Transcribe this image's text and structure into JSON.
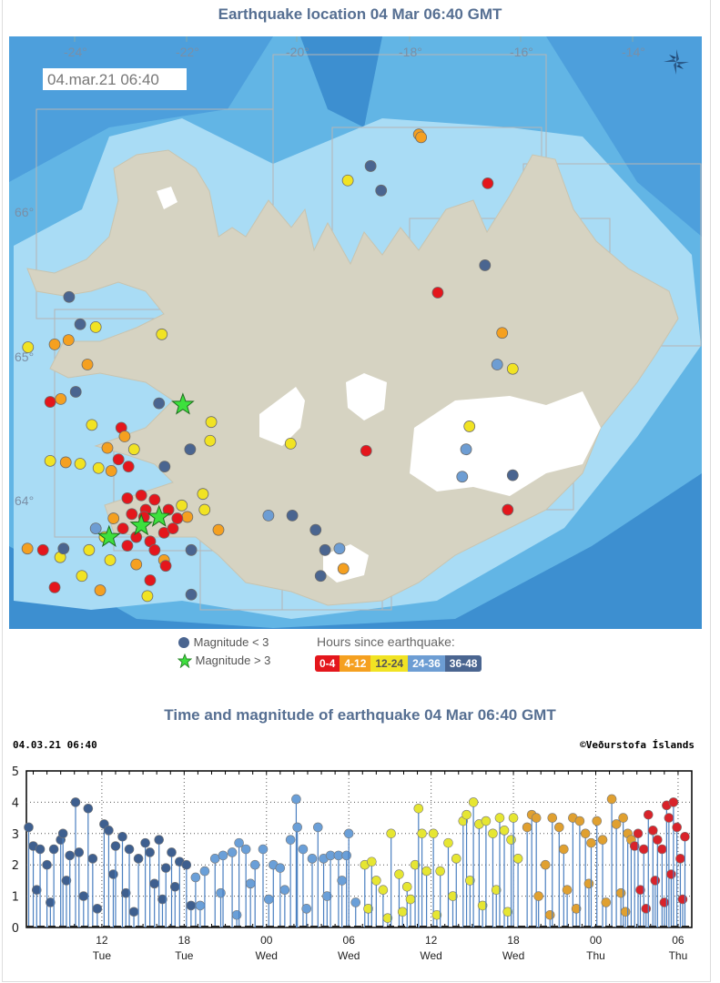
{
  "map_section": {
    "title": "Earthquake location   04 Mar 06:40 GMT",
    "timestamp": "04.mar.21  06:40",
    "lon_labels": [
      "-24°",
      "-22°",
      "-20°",
      "-18°",
      "-16°",
      "-14°"
    ],
    "lat_labels": [
      "66°",
      "65°",
      "64°"
    ],
    "compass_icon": "compass-rose-icon",
    "colors": {
      "ocean": "#62b5e5",
      "shelf": "#a9dcf5",
      "deep": "#3d8fd0",
      "land": "#d6d3c2",
      "glacier": "#ffffff"
    },
    "earthquakes": [
      [
        -16.56,
        66.2,
        "0-4"
      ],
      [
        -17.8,
        66.54,
        "4-12"
      ],
      [
        -17.76,
        66.52,
        "4-12"
      ],
      [
        -19.08,
        66.22,
        "12-24"
      ],
      [
        -18.67,
        66.32,
        "36-48"
      ],
      [
        -18.48,
        66.15,
        "36-48"
      ],
      [
        -16.61,
        65.63,
        "36-48"
      ],
      [
        -17.46,
        65.44,
        "0-4"
      ],
      [
        -16.3,
        65.16,
        "4-12"
      ],
      [
        -16.11,
        64.91,
        "12-24"
      ],
      [
        -16.39,
        64.94,
        "24-36"
      ],
      [
        -16.89,
        64.51,
        "12-24"
      ],
      [
        -16.95,
        64.35,
        "24-36"
      ],
      [
        -17.02,
        64.16,
        "24-36"
      ],
      [
        -16.11,
        64.17,
        "36-48"
      ],
      [
        -16.2,
        63.93,
        "0-4"
      ],
      [
        -18.75,
        64.34,
        "0-4"
      ],
      [
        -20.11,
        64.39,
        "12-24"
      ],
      [
        -20.51,
        63.89,
        "24-36"
      ],
      [
        -20.08,
        63.89,
        "36-48"
      ],
      [
        -19.66,
        63.79,
        "36-48"
      ],
      [
        -19.49,
        63.65,
        "36-48"
      ],
      [
        -19.23,
        63.66,
        "24-36"
      ],
      [
        -19.16,
        63.52,
        "4-12"
      ],
      [
        -19.57,
        63.47,
        "36-48"
      ],
      [
        -24.36,
        65.08,
        "4-12"
      ],
      [
        -24.11,
        65.11,
        "4-12"
      ],
      [
        -24.84,
        65.06,
        "12-24"
      ],
      [
        -23.62,
        65.2,
        "12-24"
      ],
      [
        -23.9,
        65.22,
        "36-48"
      ],
      [
        -24.1,
        65.41,
        "36-48"
      ],
      [
        -23.77,
        64.94,
        "4-12"
      ],
      [
        -22.43,
        65.15,
        "12-24"
      ],
      [
        -24.44,
        64.68,
        "0-4"
      ],
      [
        -24.25,
        64.7,
        "4-12"
      ],
      [
        -23.98,
        64.75,
        "36-48"
      ],
      [
        -22.48,
        64.67,
        "36-48"
      ],
      [
        -21.54,
        64.54,
        "12-24"
      ],
      [
        -21.56,
        64.41,
        "12-24"
      ],
      [
        -21.92,
        64.35,
        "36-48"
      ],
      [
        -23.69,
        64.52,
        "12-24"
      ],
      [
        -23.16,
        64.5,
        "0-4"
      ],
      [
        -23.1,
        64.44,
        "4-12"
      ],
      [
        -23.41,
        64.36,
        "4-12"
      ],
      [
        -22.93,
        64.35,
        "12-24"
      ],
      [
        -23.21,
        64.28,
        "0-4"
      ],
      [
        -23.03,
        64.23,
        "0-4"
      ],
      [
        -24.44,
        64.27,
        "12-24"
      ],
      [
        -24.16,
        64.26,
        "4-12"
      ],
      [
        -23.9,
        64.25,
        "12-24"
      ],
      [
        -23.57,
        64.22,
        "12-24"
      ],
      [
        -23.34,
        64.2,
        "4-12"
      ],
      [
        -22.38,
        64.23,
        "36-48"
      ],
      [
        -21.69,
        64.04,
        "12-24"
      ],
      [
        -21.66,
        63.93,
        "12-24"
      ],
      [
        -21.41,
        63.79,
        "4-12"
      ],
      [
        -21.97,
        63.88,
        "4-12"
      ],
      [
        -21.9,
        63.65,
        "36-48"
      ],
      [
        -22.39,
        63.58,
        "4-12"
      ],
      [
        -22.89,
        63.55,
        "4-12"
      ],
      [
        -23.36,
        63.58,
        "12-24"
      ],
      [
        -23.87,
        63.47,
        "12-24"
      ],
      [
        -24.36,
        63.39,
        "0-4"
      ],
      [
        -23.54,
        63.37,
        "4-12"
      ],
      [
        -22.64,
        63.44,
        "0-4"
      ],
      [
        -22.36,
        63.54,
        "0-4"
      ],
      [
        -22.69,
        63.33,
        "12-24"
      ],
      [
        -21.9,
        63.34,
        "36-48"
      ],
      [
        -24.85,
        63.66,
        "4-12"
      ],
      [
        -24.57,
        63.65,
        "0-4"
      ],
      [
        -24.26,
        63.6,
        "12-24"
      ],
      [
        -24.2,
        63.66,
        "36-48"
      ],
      [
        -23.74,
        63.65,
        "12-24"
      ],
      [
        -23.62,
        63.8,
        "24-36"
      ],
      [
        -23.3,
        63.87,
        "4-12"
      ],
      [
        -22.07,
        63.96,
        "12-24"
      ],
      [
        -23.46,
        63.74,
        "12-24"
      ],
      [
        -23.05,
        64.01,
        "0-4"
      ],
      [
        -22.8,
        64.03,
        "0-4"
      ],
      [
        -22.56,
        64.0,
        "0-4"
      ],
      [
        -22.97,
        63.9,
        "0-4"
      ],
      [
        -22.72,
        63.93,
        "0-4"
      ],
      [
        -22.31,
        63.93,
        "0-4"
      ],
      [
        -22.15,
        63.87,
        "0-4"
      ],
      [
        -23.13,
        63.8,
        "0-4"
      ],
      [
        -22.89,
        63.74,
        "0-4"
      ],
      [
        -22.64,
        63.71,
        "0-4"
      ],
      [
        -22.39,
        63.77,
        "0-4"
      ],
      [
        -22.23,
        63.8,
        "0-4"
      ],
      [
        -23.05,
        63.68,
        "0-4"
      ],
      [
        -22.56,
        63.65,
        "0-4"
      ],
      [
        -22.75,
        63.88,
        "0-4"
      ]
    ],
    "large_earthquakes": [
      [
        -22.05,
        64.66
      ],
      [
        -23.38,
        63.74
      ],
      [
        -22.8,
        63.82
      ],
      [
        -22.48,
        63.88
      ]
    ],
    "legend": {
      "small_label": "Magnitude < 3",
      "large_label": "Magnitude > 3",
      "hours_title": "Hours since earthquake:",
      "bands": [
        {
          "label": "0-4",
          "color": "#e4161c"
        },
        {
          "label": "4-12",
          "color": "#f5a020"
        },
        {
          "label": "12-24",
          "color": "#f1e323"
        },
        {
          "label": "24-36",
          "color": "#6d9dd3"
        },
        {
          "label": "36-48",
          "color": "#4a6590"
        }
      ],
      "band_text_colors": [
        "#ffffff",
        "#ffffff",
        "#555555",
        "#ffffff",
        "#ffffff"
      ]
    }
  },
  "chart_section": {
    "title": "Time and magnitude of earthquake   04 Mar 06:40 GMT",
    "timestamp": "04.03.21 06:40",
    "credit": "©Veðurstofa Íslands"
  },
  "chart_data": {
    "type": "scatter",
    "title": "",
    "xlabel": "",
    "ylabel": "",
    "xlim": [
      "Tue 06:30",
      "Thu 07:00"
    ],
    "ylim": [
      0,
      5
    ],
    "yticks": [
      "0",
      "1",
      "2",
      "3",
      "4",
      "5"
    ],
    "xticks": [
      {
        "at": "Tue 12:00",
        "hour": "12",
        "day": "Tue"
      },
      {
        "at": "Tue 18:00",
        "hour": "18",
        "day": "Tue"
      },
      {
        "at": "Wed 00:00",
        "hour": "00",
        "day": "Wed"
      },
      {
        "at": "Wed 06:00",
        "hour": "06",
        "day": "Wed"
      },
      {
        "at": "Wed 12:00",
        "hour": "12",
        "day": "Wed"
      },
      {
        "at": "Wed 18:00",
        "hour": "18",
        "day": "Wed"
      },
      {
        "at": "Thu 00:00",
        "hour": "00",
        "day": "Thu"
      },
      {
        "at": "Thu 06:00",
        "hour": "06",
        "day": "Thu"
      }
    ],
    "grid": true,
    "series": [
      {
        "name": "36-48",
        "color": "#3e5f8f",
        "points": [
          [
            "Tue 06:40",
            3.2
          ],
          [
            "Tue 07:00",
            2.6
          ],
          [
            "Tue 07:15",
            1.2
          ],
          [
            "Tue 07:30",
            2.5
          ],
          [
            "Tue 08:00",
            2.0
          ],
          [
            "Tue 08:15",
            0.8
          ],
          [
            "Tue 08:30",
            2.5
          ],
          [
            "Tue 09:00",
            2.8
          ],
          [
            "Tue 09:10",
            3.0
          ],
          [
            "Tue 09:25",
            1.5
          ],
          [
            "Tue 09:40",
            2.3
          ],
          [
            "Tue 10:05",
            4.0
          ],
          [
            "Tue 10:20",
            2.4
          ],
          [
            "Tue 10:40",
            1.0
          ],
          [
            "Tue 11:00",
            3.8
          ],
          [
            "Tue 11:20",
            2.2
          ],
          [
            "Tue 11:40",
            0.6
          ],
          [
            "Tue 12:10",
            3.3
          ],
          [
            "Tue 12:30",
            3.1
          ],
          [
            "Tue 12:50",
            1.7
          ],
          [
            "Tue 13:00",
            2.6
          ],
          [
            "Tue 13:30",
            2.9
          ],
          [
            "Tue 13:45",
            1.1
          ],
          [
            "Tue 14:00",
            2.5
          ],
          [
            "Tue 14:20",
            0.5
          ],
          [
            "Tue 14:40",
            2.2
          ],
          [
            "Tue 15:10",
            2.7
          ],
          [
            "Tue 15:30",
            2.4
          ],
          [
            "Tue 15:50",
            1.4
          ],
          [
            "Tue 16:10",
            2.8
          ],
          [
            "Tue 16:25",
            0.9
          ],
          [
            "Tue 16:40",
            1.9
          ],
          [
            "Tue 17:05",
            2.4
          ],
          [
            "Tue 17:20",
            1.3
          ],
          [
            "Tue 17:40",
            2.1
          ],
          [
            "Tue 18:10",
            2.0
          ],
          [
            "Tue 18:30",
            0.7
          ]
        ]
      },
      {
        "name": "24-36",
        "color": "#6a9fd8",
        "points": [
          [
            "Tue 18:50",
            1.6
          ],
          [
            "Tue 19:10",
            0.7
          ],
          [
            "Tue 19:30",
            1.8
          ],
          [
            "Tue 20:15",
            2.2
          ],
          [
            "Tue 20:40",
            1.1
          ],
          [
            "Tue 20:50",
            2.3
          ],
          [
            "Tue 21:30",
            2.4
          ],
          [
            "Tue 21:50",
            0.4
          ],
          [
            "Tue 22:00",
            2.7
          ],
          [
            "Tue 22:30",
            2.5
          ],
          [
            "Tue 22:50",
            1.4
          ],
          [
            "Tue 23:10",
            2.0
          ],
          [
            "Tue 23:45",
            2.5
          ],
          [
            "Wed 00:10",
            0.9
          ],
          [
            "Wed 00:30",
            2.0
          ],
          [
            "Wed 01:00",
            1.9
          ],
          [
            "Wed 01:20",
            1.2
          ],
          [
            "Wed 01:45",
            2.8
          ],
          [
            "Wed 02:10",
            4.1
          ],
          [
            "Wed 02:15",
            3.2
          ],
          [
            "Wed 02:40",
            2.5
          ],
          [
            "Wed 02:55",
            0.6
          ],
          [
            "Wed 03:20",
            2.2
          ],
          [
            "Wed 03:45",
            3.2
          ],
          [
            "Wed 04:10",
            2.2
          ],
          [
            "Wed 04:25",
            1.0
          ],
          [
            "Wed 04:40",
            2.3
          ],
          [
            "Wed 05:15",
            2.3
          ],
          [
            "Wed 05:30",
            1.5
          ],
          [
            "Wed 05:50",
            2.3
          ],
          [
            "Wed 06:00",
            3.0
          ],
          [
            "Wed 06:30",
            0.8
          ]
        ]
      },
      {
        "name": "12-24",
        "color": "#e6e632",
        "points": [
          [
            "Wed 07:10",
            2.0
          ],
          [
            "Wed 07:25",
            0.6
          ],
          [
            "Wed 07:40",
            2.1
          ],
          [
            "Wed 08:00",
            1.5
          ],
          [
            "Wed 08:30",
            1.2
          ],
          [
            "Wed 08:50",
            0.3
          ],
          [
            "Wed 09:05",
            3.0
          ],
          [
            "Wed 09:40",
            1.7
          ],
          [
            "Wed 09:55",
            0.5
          ],
          [
            "Wed 10:15",
            1.3
          ],
          [
            "Wed 10:30",
            0.9
          ],
          [
            "Wed 10:50",
            2.0
          ],
          [
            "Wed 11:05",
            3.8
          ],
          [
            "Wed 11:20",
            3.0
          ],
          [
            "Wed 11:40",
            1.8
          ],
          [
            "Wed 12:10",
            3.0
          ],
          [
            "Wed 12:25",
            0.4
          ],
          [
            "Wed 12:40",
            1.8
          ],
          [
            "Wed 13:15",
            2.7
          ],
          [
            "Wed 13:35",
            1.0
          ],
          [
            "Wed 13:50",
            2.2
          ],
          [
            "Wed 14:20",
            3.4
          ],
          [
            "Wed 14:35",
            3.6
          ],
          [
            "Wed 14:50",
            1.5
          ],
          [
            "Wed 15:05",
            4.0
          ],
          [
            "Wed 15:30",
            3.3
          ],
          [
            "Wed 15:45",
            0.7
          ],
          [
            "Wed 16:00",
            3.4
          ],
          [
            "Wed 16:30",
            3.0
          ],
          [
            "Wed 16:45",
            1.2
          ],
          [
            "Wed 17:00",
            3.5
          ],
          [
            "Wed 17:20",
            3.1
          ],
          [
            "Wed 17:35",
            0.5
          ],
          [
            "Wed 17:50",
            2.8
          ],
          [
            "Wed 18:00",
            3.5
          ],
          [
            "Wed 18:20",
            2.2
          ]
        ]
      },
      {
        "name": "4-12",
        "color": "#e0a030",
        "points": [
          [
            "Wed 19:00",
            3.2
          ],
          [
            "Wed 19:20",
            3.6
          ],
          [
            "Wed 19:40",
            3.5
          ],
          [
            "Wed 19:50",
            1.0
          ],
          [
            "Wed 20:20",
            2.0
          ],
          [
            "Wed 20:40",
            0.4
          ],
          [
            "Wed 20:50",
            3.5
          ],
          [
            "Wed 21:20",
            3.2
          ],
          [
            "Wed 21:40",
            2.5
          ],
          [
            "Wed 21:55",
            1.2
          ],
          [
            "Wed 22:20",
            3.5
          ],
          [
            "Wed 22:35",
            0.6
          ],
          [
            "Wed 22:50",
            3.4
          ],
          [
            "Wed 23:15",
            3.0
          ],
          [
            "Wed 23:30",
            1.4
          ],
          [
            "Wed 23:40",
            2.7
          ],
          [
            "Thu 00:05",
            3.4
          ],
          [
            "Thu 00:30",
            2.8
          ],
          [
            "Thu 00:45",
            0.8
          ],
          [
            "Thu 01:10",
            4.1
          ],
          [
            "Thu 01:30",
            3.3
          ],
          [
            "Thu 01:50",
            1.1
          ],
          [
            "Thu 02:00",
            3.5
          ],
          [
            "Thu 02:10",
            0.5
          ],
          [
            "Thu 02:20",
            3.0
          ],
          [
            "Thu 02:35",
            2.8
          ]
        ]
      },
      {
        "name": "0-4",
        "color": "#d8232a",
        "points": [
          [
            "Thu 02:50",
            2.6
          ],
          [
            "Thu 03:05",
            3.0
          ],
          [
            "Thu 03:15",
            1.2
          ],
          [
            "Thu 03:30",
            2.5
          ],
          [
            "Thu 03:40",
            0.6
          ],
          [
            "Thu 03:50",
            3.6
          ],
          [
            "Thu 04:10",
            3.1
          ],
          [
            "Thu 04:20",
            1.5
          ],
          [
            "Thu 04:30",
            2.8
          ],
          [
            "Thu 04:50",
            2.5
          ],
          [
            "Thu 05:00",
            0.8
          ],
          [
            "Thu 05:10",
            3.9
          ],
          [
            "Thu 05:20",
            3.5
          ],
          [
            "Thu 05:30",
            1.7
          ],
          [
            "Thu 05:40",
            4.0
          ],
          [
            "Thu 05:55",
            3.2
          ],
          [
            "Thu 06:10",
            2.2
          ],
          [
            "Thu 06:20",
            0.9
          ],
          [
            "Thu 06:30",
            2.9
          ]
        ]
      }
    ]
  }
}
